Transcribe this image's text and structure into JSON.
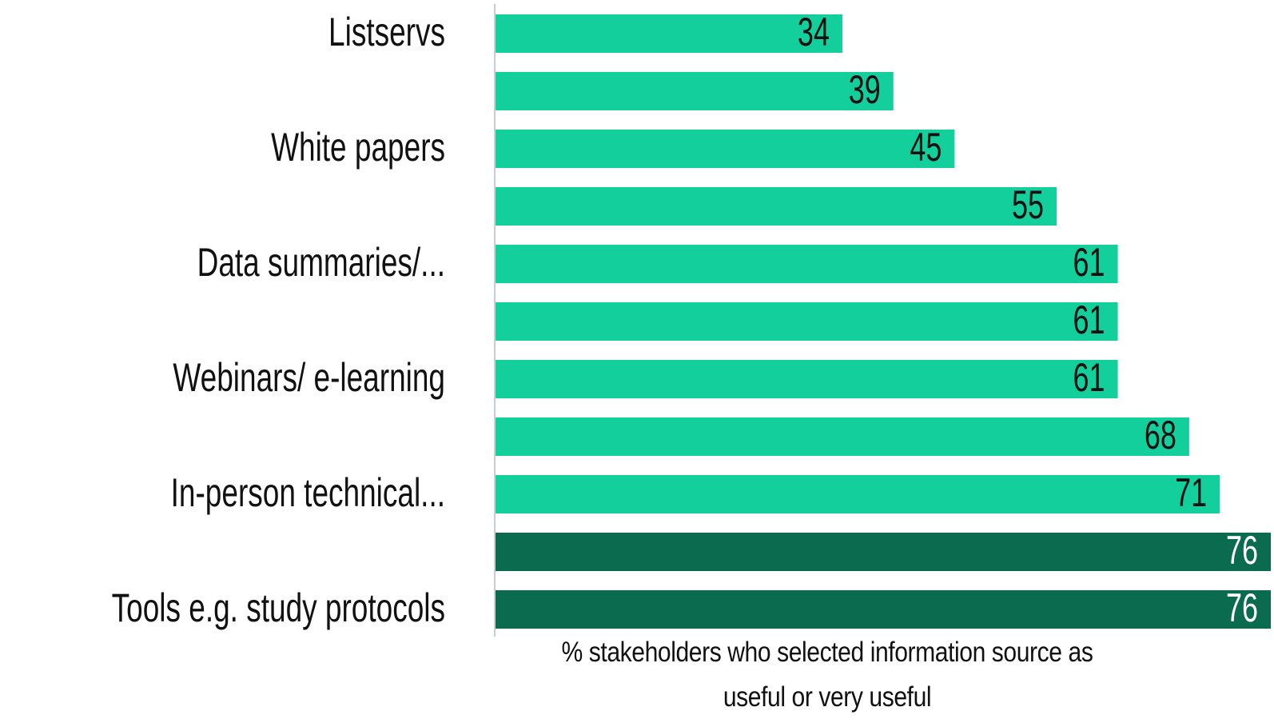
{
  "chart_data": {
    "type": "hbar",
    "categories": [
      "Listservs",
      null,
      "White papers",
      null,
      "Data summaries/...",
      null,
      "Webinars/ e-learning",
      null,
      "In-person technical...",
      null,
      "Tools e.g. study protocols"
    ],
    "values": [
      34,
      39,
      45,
      55,
      61,
      61,
      61,
      68,
      71,
      76,
      76
    ],
    "colors": [
      "#13cf9c",
      "#13cf9c",
      "#13cf9c",
      "#13cf9c",
      "#13cf9c",
      "#13cf9c",
      "#13cf9c",
      "#13cf9c",
      "#13cf9c",
      "#0b6b4f",
      "#0b6b4f"
    ],
    "xlim": [
      0,
      76
    ],
    "x_label": "% stakeholders who selected information source as useful or very useful"
  }
}
